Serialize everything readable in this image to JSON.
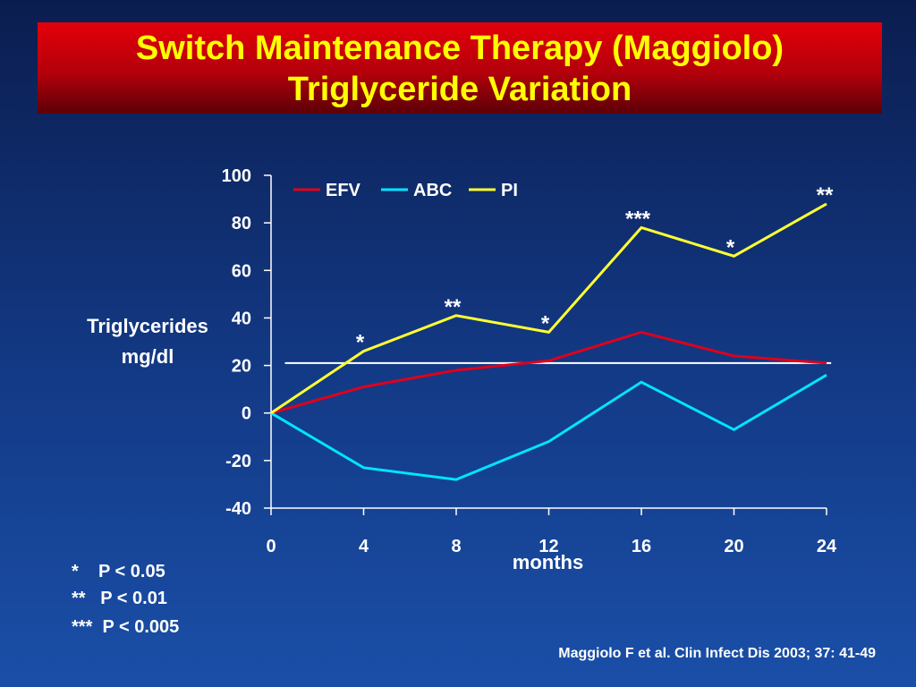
{
  "title": {
    "line1": "Switch Maintenance Therapy (Maggiolo)",
    "line2": "Triglyceride Variation"
  },
  "colors": {
    "background": "#133a86",
    "banner": "#c4000a",
    "title_text": "#ffff00",
    "EFV": "#e0001b",
    "ABC": "#00e5ff",
    "PI": "#ffff33",
    "reference_line": "#ffffff"
  },
  "chart_data": {
    "type": "line",
    "xlabel": "months",
    "ylabel_lines": [
      "Triglycerides",
      "mg/dl"
    ],
    "x": [
      0,
      4,
      8,
      12,
      16,
      20,
      24
    ],
    "xlim": [
      0,
      24
    ],
    "ylim": [
      -40,
      100
    ],
    "yticks": [
      -40,
      -20,
      0,
      20,
      40,
      60,
      80,
      100
    ],
    "grid": false,
    "legend_position": "top-left",
    "series": [
      {
        "name": "EFV",
        "color": "#e0001b",
        "values": [
          0,
          11,
          18,
          22,
          34,
          24,
          21
        ]
      },
      {
        "name": "ABC",
        "color": "#00e5ff",
        "values": [
          0,
          -23,
          -28,
          -12,
          13,
          -7,
          16
        ]
      },
      {
        "name": "PI",
        "color": "#ffff33",
        "values": [
          0,
          26,
          41,
          34,
          78,
          66,
          88
        ]
      }
    ],
    "reference_line": {
      "y": 21,
      "x_range": [
        0.6,
        24.2
      ],
      "color": "#ffffff"
    },
    "annotations": [
      {
        "x": 4,
        "text": "*"
      },
      {
        "x": 8,
        "text": "**"
      },
      {
        "x": 12,
        "text": "*"
      },
      {
        "x": 16,
        "text": "***"
      },
      {
        "x": 20,
        "text": "*"
      },
      {
        "x": 24,
        "text": "**"
      }
    ]
  },
  "significance_key": [
    "*    P < 0.05",
    "**   P < 0.01",
    "***  P < 0.005"
  ],
  "citation": "Maggiolo F et al. Clin Infect Dis 2003; 37: 41-49"
}
